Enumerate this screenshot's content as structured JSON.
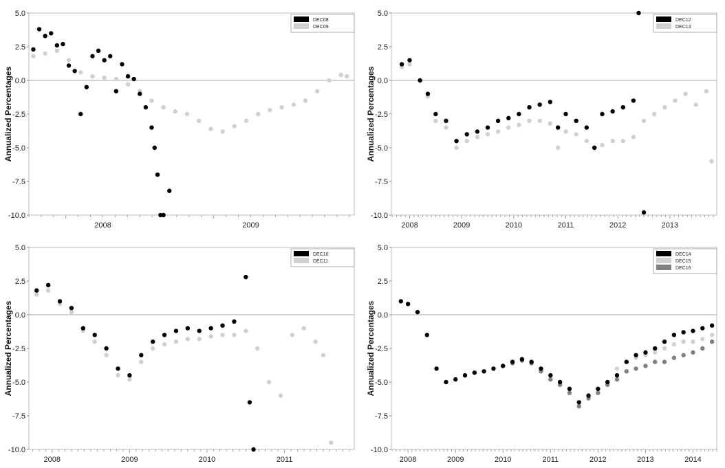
{
  "chart_data": [
    {
      "type": "scatter",
      "ylabel": "Annualized Percentages",
      "ylim": [
        -10,
        5
      ],
      "yticks": [
        "5.0",
        "2.5",
        "0.0",
        "-2.5",
        "-5.0",
        "-7.5",
        "-10.0"
      ],
      "xlim": [
        2007.75,
        2009.95
      ],
      "xticks": [
        {
          "label": "2008",
          "at": 2008.25
        },
        {
          "label": "2009",
          "at": 2009.25
        }
      ],
      "legend_position": "top-right",
      "colors": {
        "DEC08": "#000000",
        "DEC09": "#d0d0d0"
      },
      "series": [
        {
          "name": "DEC08",
          "color": "#000000",
          "x": [
            2007.78,
            2007.82,
            2007.86,
            2007.9,
            2007.94,
            2007.98,
            2008.02,
            2008.06,
            2008.1,
            2008.14,
            2008.18,
            2008.22,
            2008.26,
            2008.3,
            2008.34,
            2008.38,
            2008.42,
            2008.46,
            2008.5,
            2008.54,
            2008.58,
            2008.6,
            2008.62,
            2008.64,
            2008.66,
            2008.7
          ],
          "y": [
            2.3,
            3.8,
            3.3,
            3.5,
            2.6,
            2.7,
            1.1,
            0.7,
            -2.5,
            -0.5,
            1.8,
            2.2,
            1.5,
            1.8,
            -0.8,
            1.2,
            0.3,
            0.1,
            -1.0,
            -2.0,
            -3.5,
            -5.0,
            -7.0,
            -10.0,
            -10.0,
            -8.2
          ]
        },
        {
          "name": "DEC09",
          "color": "#d0d0d0",
          "x": [
            2007.78,
            2007.86,
            2007.94,
            2008.02,
            2008.1,
            2008.18,
            2008.26,
            2008.34,
            2008.42,
            2008.5,
            2008.58,
            2008.66,
            2008.74,
            2008.82,
            2008.9,
            2008.98,
            2009.06,
            2009.14,
            2009.22,
            2009.3,
            2009.38,
            2009.46,
            2009.54,
            2009.62,
            2009.7,
            2009.78,
            2009.86,
            2009.9
          ],
          "y": [
            1.8,
            2.0,
            2.2,
            1.5,
            0.6,
            0.3,
            0.2,
            0.1,
            -0.3,
            -0.8,
            -1.5,
            -2.0,
            -2.3,
            -2.5,
            -3.0,
            -3.6,
            -3.8,
            -3.4,
            -3.0,
            -2.5,
            -2.2,
            -2.0,
            -1.8,
            -1.5,
            -0.8,
            0.0,
            0.4,
            0.3
          ]
        }
      ]
    },
    {
      "type": "scatter",
      "ylabel": "Annualized Percentages",
      "ylim": [
        -10,
        5
      ],
      "yticks": [
        "5.0",
        "2.5",
        "0.0",
        "-2.5",
        "-5.0",
        "-7.5",
        "-10.0"
      ],
      "xlim": [
        2007.65,
        2013.9
      ],
      "xticks": [
        {
          "label": "2008",
          "at": 2008.0
        },
        {
          "label": "2009",
          "at": 2009.0
        },
        {
          "label": "2010",
          "at": 2010.0
        },
        {
          "label": "2011",
          "at": 2011.0
        },
        {
          "label": "2012",
          "at": 2012.0
        },
        {
          "label": "2013",
          "at": 2013.0
        }
      ],
      "legend_position": "top-right",
      "colors": {
        "DEC12": "#000000",
        "DEC13": "#d0d0d0"
      },
      "series": [
        {
          "name": "DEC12",
          "color": "#000000",
          "x": [
            2007.85,
            2008.0,
            2008.2,
            2008.35,
            2008.5,
            2008.7,
            2008.9,
            2009.1,
            2009.3,
            2009.5,
            2009.7,
            2009.9,
            2010.1,
            2010.3,
            2010.5,
            2010.7,
            2010.85,
            2011.0,
            2011.2,
            2011.4,
            2011.55,
            2011.7,
            2011.9,
            2012.1,
            2012.3,
            2012.4,
            2012.5
          ],
          "y": [
            1.2,
            1.5,
            0.0,
            -1.0,
            -2.5,
            -3.0,
            -4.5,
            -4.0,
            -3.8,
            -3.5,
            -3.0,
            -2.8,
            -2.5,
            -2.0,
            -1.8,
            -1.6,
            -3.5,
            -2.5,
            -3.0,
            -3.5,
            -5.0,
            -2.5,
            -2.3,
            -2.0,
            -1.5,
            5.0,
            -9.8
          ]
        },
        {
          "name": "DEC13",
          "color": "#d0d0d0",
          "x": [
            2007.85,
            2008.0,
            2008.2,
            2008.35,
            2008.5,
            2008.7,
            2008.9,
            2009.1,
            2009.3,
            2009.5,
            2009.7,
            2009.9,
            2010.1,
            2010.3,
            2010.5,
            2010.7,
            2010.85,
            2011.0,
            2011.2,
            2011.4,
            2011.55,
            2011.7,
            2011.9,
            2012.1,
            2012.3,
            2012.5,
            2012.7,
            2012.9,
            2013.1,
            2013.3,
            2013.5,
            2013.7,
            2013.8
          ],
          "y": [
            1.0,
            1.2,
            0.0,
            -1.2,
            -3.0,
            -3.5,
            -5.0,
            -4.5,
            -4.2,
            -4.0,
            -3.8,
            -3.5,
            -3.3,
            -3.0,
            -3.0,
            -3.2,
            -5.0,
            -3.8,
            -4.0,
            -4.5,
            -5.0,
            -4.8,
            -4.5,
            -4.5,
            -4.2,
            -3.0,
            -2.5,
            -2.0,
            -1.5,
            -1.0,
            -1.8,
            -0.8,
            -6.0
          ]
        }
      ]
    },
    {
      "type": "scatter",
      "ylabel": "Annualized Percentages",
      "ylim": [
        -10,
        5
      ],
      "yticks": [
        "5.0",
        "2.5",
        "0.0",
        "-2.5",
        "-5.0",
        "-7.5",
        "-10.0"
      ],
      "xlim": [
        2007.7,
        2011.9
      ],
      "xticks": [
        {
          "label": "2008",
          "at": 2008.0
        },
        {
          "label": "2009",
          "at": 2009.0
        },
        {
          "label": "2010",
          "at": 2010.0
        },
        {
          "label": "2011",
          "at": 2011.0
        }
      ],
      "legend_position": "top-right",
      "colors": {
        "DEC10": "#000000",
        "DEC11": "#d0d0d0"
      },
      "series": [
        {
          "name": "DEC10",
          "color": "#000000",
          "x": [
            2007.8,
            2007.95,
            2008.1,
            2008.25,
            2008.4,
            2008.55,
            2008.7,
            2008.85,
            2009.0,
            2009.15,
            2009.3,
            2009.45,
            2009.6,
            2009.75,
            2009.9,
            2010.05,
            2010.2,
            2010.35,
            2010.5,
            2010.55,
            2010.6
          ],
          "y": [
            1.8,
            2.2,
            1.0,
            0.5,
            -1.0,
            -1.5,
            -2.5,
            -4.0,
            -4.5,
            -3.0,
            -2.0,
            -1.5,
            -1.2,
            -1.0,
            -1.2,
            -1.0,
            -0.8,
            -0.5,
            2.8,
            -6.5,
            -10.0
          ]
        },
        {
          "name": "DEC11",
          "color": "#d0d0d0",
          "x": [
            2007.8,
            2007.95,
            2008.1,
            2008.25,
            2008.4,
            2008.55,
            2008.7,
            2008.85,
            2009.0,
            2009.15,
            2009.3,
            2009.45,
            2009.6,
            2009.75,
            2009.9,
            2010.05,
            2010.2,
            2010.35,
            2010.5,
            2010.65,
            2010.8,
            2010.95,
            2011.1,
            2011.25,
            2011.4,
            2011.5,
            2011.6
          ],
          "y": [
            1.5,
            1.8,
            0.8,
            0.2,
            -1.2,
            -2.0,
            -3.0,
            -4.5,
            -4.8,
            -3.5,
            -2.5,
            -2.2,
            -2.0,
            -1.8,
            -1.8,
            -1.6,
            -1.5,
            -1.5,
            -1.2,
            -2.5,
            -5.0,
            -6.0,
            -1.5,
            -1.0,
            -2.0,
            -3.0,
            -9.5
          ]
        }
      ]
    },
    {
      "type": "scatter",
      "ylabel": "Annualized Percentages",
      "ylim": [
        -10,
        5
      ],
      "yticks": [
        "5.0",
        "2.5",
        "0.0",
        "-2.5",
        "-5.0",
        "-7.5",
        "-10.0"
      ],
      "xlim": [
        2007.65,
        2014.5
      ],
      "xticks": [
        {
          "label": "2008",
          "at": 2008.0
        },
        {
          "label": "2009",
          "at": 2009.0
        },
        {
          "label": "2010",
          "at": 2010.0
        },
        {
          "label": "2011",
          "at": 2011.0
        },
        {
          "label": "2012",
          "at": 2012.0
        },
        {
          "label": "2013",
          "at": 2013.0
        },
        {
          "label": "2014",
          "at": 2014.0
        }
      ],
      "legend_position": "top-right",
      "colors": {
        "DEC14": "#000000",
        "DEC15": "#d0d0d0",
        "DEC16": "#808080"
      },
      "series": [
        {
          "name": "DEC14",
          "color": "#000000",
          "x": [
            2007.85,
            2008.0,
            2008.2,
            2008.4,
            2008.6,
            2008.8,
            2009.0,
            2009.2,
            2009.4,
            2009.6,
            2009.8,
            2010.0,
            2010.2,
            2010.4,
            2010.6,
            2010.8,
            2011.0,
            2011.2,
            2011.4,
            2011.6,
            2011.8,
            2012.0,
            2012.2,
            2012.4,
            2012.6,
            2012.8,
            2013.0,
            2013.2,
            2013.4,
            2013.6,
            2013.8,
            2014.0,
            2014.2,
            2014.4
          ],
          "y": [
            1.0,
            0.8,
            0.2,
            -1.5,
            -4.0,
            -5.0,
            -4.8,
            -4.5,
            -4.3,
            -4.2,
            -4.0,
            -3.8,
            -3.5,
            -3.3,
            -3.5,
            -4.0,
            -4.5,
            -5.0,
            -5.5,
            -6.5,
            -6.0,
            -5.5,
            -5.0,
            -4.5,
            -3.5,
            -3.0,
            -2.8,
            -2.5,
            -2.0,
            -1.5,
            -1.3,
            -1.2,
            -1.0,
            -0.8
          ]
        },
        {
          "name": "DEC15",
          "color": "#d0d0d0",
          "x": [
            2012.4,
            2012.6,
            2012.8,
            2013.0,
            2013.2,
            2013.4,
            2013.6,
            2013.8,
            2014.0,
            2014.2,
            2014.4
          ],
          "y": [
            -4.0,
            -3.5,
            -3.2,
            -3.0,
            -2.8,
            -2.5,
            -2.2,
            -2.0,
            -2.0,
            -1.8,
            -1.5
          ]
        },
        {
          "name": "DEC16",
          "color": "#808080",
          "x": [
            2010.0,
            2010.2,
            2010.4,
            2010.6,
            2010.8,
            2011.0,
            2011.2,
            2011.4,
            2011.6,
            2011.8,
            2012.0,
            2012.2,
            2012.4,
            2012.6,
            2012.8,
            2013.0,
            2013.2,
            2013.4,
            2013.6,
            2013.8,
            2014.0,
            2014.2,
            2014.4
          ],
          "y": [
            -3.8,
            -3.6,
            -3.4,
            -3.6,
            -4.2,
            -4.8,
            -5.2,
            -5.8,
            -6.8,
            -6.2,
            -5.8,
            -5.2,
            -4.8,
            -4.2,
            -4.0,
            -3.8,
            -3.5,
            -3.5,
            -3.2,
            -3.0,
            -2.8,
            -2.5,
            -2.0
          ]
        }
      ]
    }
  ]
}
